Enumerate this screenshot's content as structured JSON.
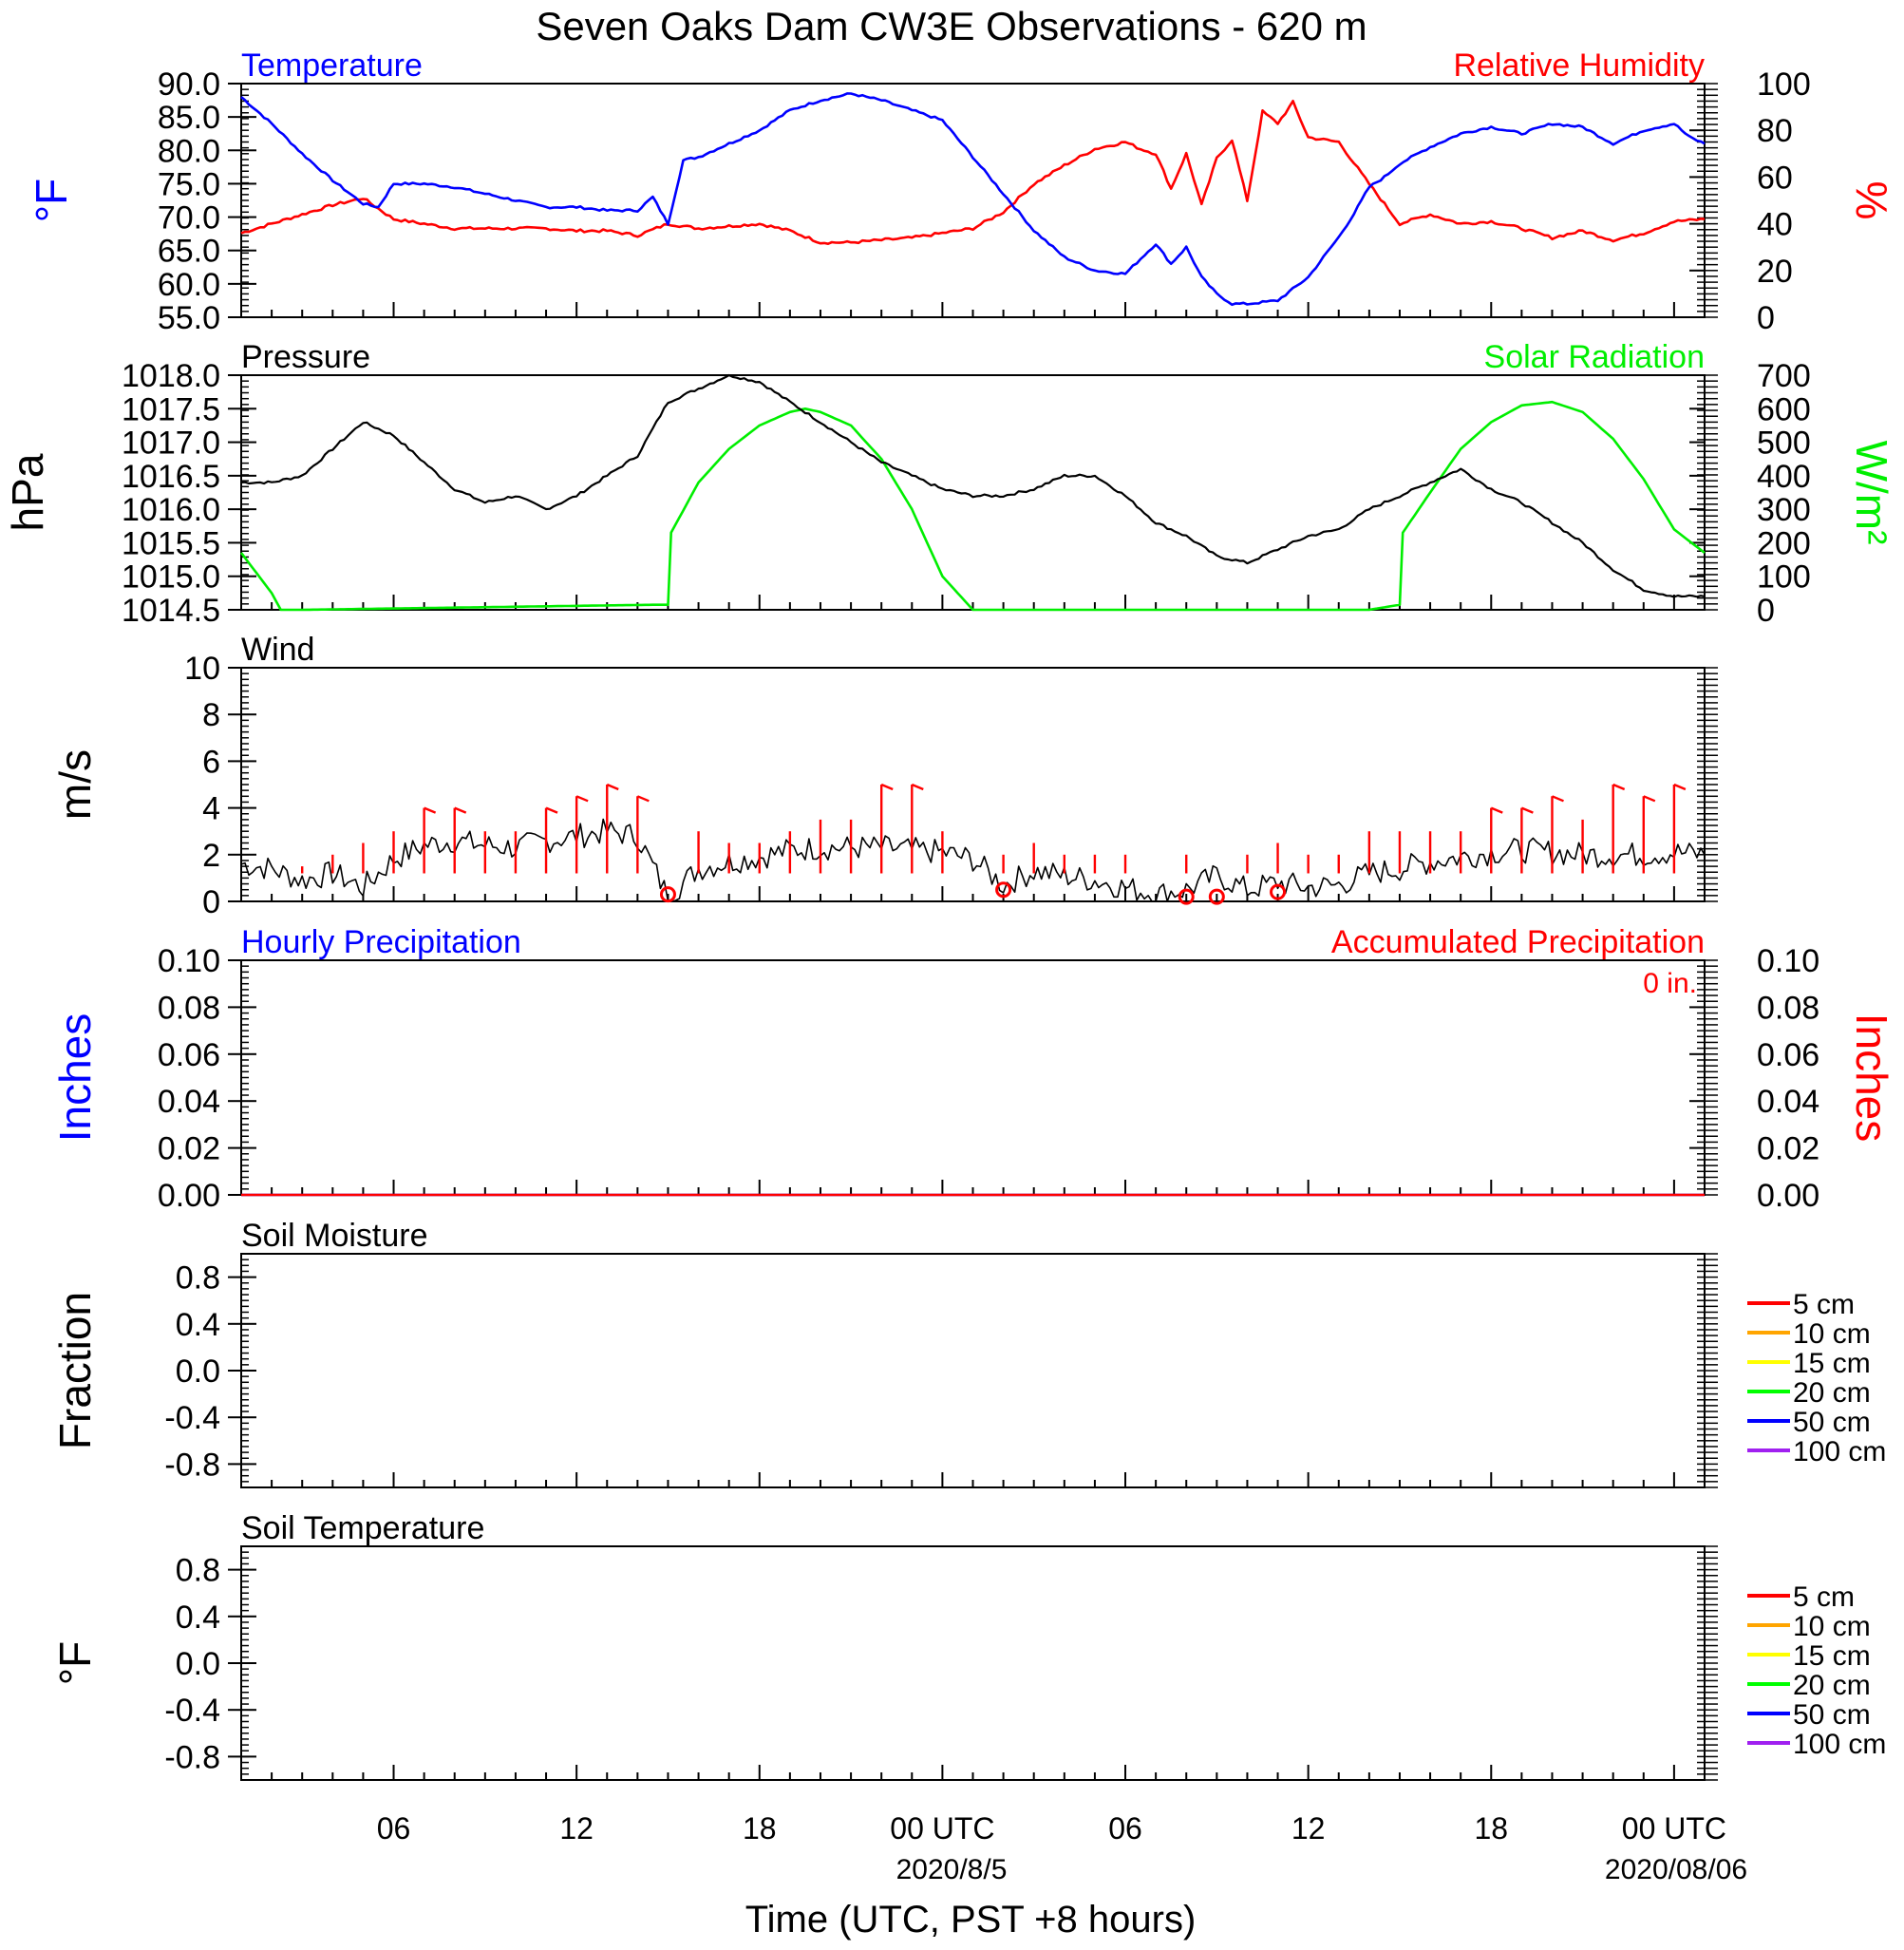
{
  "title": "Seven Oaks Dam CW3E Observations - 620 m",
  "x_axis": {
    "label": "Time (UTC, PST +8 hours)",
    "ticks": [
      "06",
      "12",
      "18",
      "00 UTC",
      "06",
      "12",
      "18",
      "00 UTC"
    ],
    "dates": [
      "2020/8/5",
      "2020/08/06"
    ]
  },
  "colors": {
    "temperature": "#0000ff",
    "humidity": "#ff0000",
    "pressure": "#000000",
    "solar": "#00ee00",
    "wind": "#000000",
    "barbs": "#ff0000",
    "precip_hourly": "#0000ff",
    "precip_accum": "#ff0000"
  },
  "legend_levels": {
    "labels": [
      "5 cm",
      "10 cm",
      "15 cm",
      "20 cm",
      "50 cm",
      "100 cm"
    ],
    "colors": [
      "#ff0000",
      "#ffa500",
      "#ffff00",
      "#00ff00",
      "#0000ff",
      "#a020f0"
    ]
  },
  "panels": {
    "temp_rh": {
      "left_title": "Temperature",
      "right_title": "Relative Humidity",
      "left_unit": "°F",
      "right_unit": "%",
      "left_ticks": [
        "90.0",
        "85.0",
        "80.0",
        "75.0",
        "70.0",
        "65.0",
        "60.0",
        "55.0"
      ],
      "right_ticks": [
        "100",
        "80",
        "60",
        "40",
        "20",
        "0"
      ]
    },
    "pressure_solar": {
      "left_title": "Pressure",
      "right_title": "Solar Radiation",
      "left_unit": "hPa",
      "right_unit": "W/m²",
      "left_ticks": [
        "1018.0",
        "1017.5",
        "1017.0",
        "1016.5",
        "1016.0",
        "1015.5",
        "1015.0",
        "1014.5"
      ],
      "right_ticks": [
        "700",
        "600",
        "500",
        "400",
        "300",
        "200",
        "100",
        "0"
      ]
    },
    "wind": {
      "left_title": "Wind",
      "left_unit": "m/s",
      "left_ticks": [
        "10",
        "8",
        "6",
        "4",
        "2",
        "0"
      ]
    },
    "precip": {
      "left_title": "Hourly Precipitation",
      "right_title": "Accumulated Precipitation",
      "left_unit": "Inches",
      "right_unit": "Inches",
      "left_ticks": [
        "0.10",
        "0.08",
        "0.06",
        "0.04",
        "0.02",
        "0.00"
      ],
      "right_ticks": [
        "0.10",
        "0.08",
        "0.06",
        "0.04",
        "0.02",
        "0.00"
      ],
      "total_label": "0 in."
    },
    "soil_moisture": {
      "left_title": "Soil Moisture",
      "left_unit": "Fraction",
      "left_ticks": [
        "0.8",
        "0.4",
        "0.0",
        "-0.4",
        "-0.8"
      ]
    },
    "soil_temp": {
      "left_title": "Soil Temperature",
      "left_unit": "°F",
      "left_ticks": [
        "0.8",
        "0.4",
        "0.0",
        "-0.4",
        "-0.8"
      ]
    }
  },
  "chart_data": {
    "type": "line",
    "x_unit": "hours since 2020-08-04 00 UTC",
    "x_range": [
      1,
      49
    ],
    "series": [
      {
        "name": "Temperature",
        "axis": "temp_rh-left",
        "ylim": [
          55,
          90
        ],
        "x": [
          1,
          2,
          3,
          4,
          5,
          5.5,
          6,
          7,
          8,
          9,
          10,
          11,
          12,
          13,
          14,
          14.5,
          15,
          15.5,
          16,
          17,
          18,
          19,
          20,
          21,
          22,
          23,
          24,
          25,
          26,
          27,
          28,
          29,
          30,
          31,
          31.5,
          32,
          32.5,
          33,
          33.5,
          34,
          35,
          36,
          37,
          37.5,
          38,
          38.5,
          39,
          40,
          41,
          42,
          43,
          44,
          45,
          46,
          47,
          48,
          48.5,
          49
        ],
        "y": [
          88,
          84,
          79.5,
          75.5,
          72,
          71.5,
          75,
          75,
          74.5,
          73.5,
          72.5,
          71.5,
          71.5,
          71,
          71,
          73,
          69,
          78.5,
          79,
          81,
          83,
          86,
          87.5,
          88.5,
          87.5,
          86,
          84.5,
          79,
          73.5,
          68,
          64,
          62,
          61.5,
          66,
          63,
          65.5,
          61,
          58.5,
          57,
          57,
          57.5,
          61,
          67,
          70.5,
          74.5,
          76,
          78,
          80.5,
          82.5,
          83.5,
          82.5,
          84,
          83.5,
          81,
          83,
          84,
          82,
          81
        ]
      },
      {
        "name": "Relative Humidity",
        "axis": "temp_rh-right",
        "ylim": [
          0,
          100
        ],
        "x": [
          1,
          2,
          3,
          4,
          5,
          6,
          7,
          8,
          9,
          10,
          11,
          12,
          13,
          14,
          15,
          16,
          17,
          18,
          19,
          20,
          21,
          22,
          23,
          24,
          25,
          26,
          27,
          28,
          29,
          30,
          30.5,
          31,
          31.5,
          32,
          32.5,
          33,
          33.5,
          34,
          34.5,
          35,
          35.5,
          36,
          37,
          38,
          39,
          40,
          41,
          42,
          43,
          44,
          45,
          46,
          47,
          48,
          49
        ],
        "y": [
          36,
          40,
          44,
          48,
          51,
          42,
          40,
          38,
          38,
          38,
          38,
          37,
          37,
          35,
          40,
          38,
          39,
          40,
          37,
          32,
          32,
          33,
          34,
          36,
          38,
          45,
          57,
          65,
          72,
          75,
          72,
          70,
          55,
          70,
          48,
          68,
          76,
          50,
          88,
          83,
          92,
          77,
          75,
          57,
          40,
          44,
          40,
          41,
          38,
          34,
          37,
          33,
          36,
          41,
          42
        ]
      },
      {
        "name": "Pressure",
        "axis": "pressure_solar-left",
        "ylim": [
          1014.5,
          1018
        ],
        "x": [
          1,
          2,
          3,
          4,
          5,
          6,
          7,
          8,
          9,
          10,
          11,
          12,
          13,
          14,
          15,
          16,
          17,
          18,
          19,
          20,
          21,
          22,
          23,
          24,
          25,
          26,
          27,
          28,
          29,
          30,
          31,
          32,
          33,
          34,
          35,
          36,
          37,
          38,
          39,
          40,
          41,
          42,
          43,
          44,
          45,
          46,
          47,
          48,
          49
        ],
        "y": [
          1016.4,
          1016.4,
          1016.5,
          1016.9,
          1017.3,
          1017.1,
          1016.7,
          1016.3,
          1016.1,
          1016.2,
          1016,
          1016.2,
          1016.5,
          1016.8,
          1017.6,
          1017.8,
          1018,
          1017.9,
          1017.6,
          1017.3,
          1017,
          1016.7,
          1016.5,
          1016.3,
          1016.2,
          1016.2,
          1016.3,
          1016.5,
          1016.5,
          1016.2,
          1015.8,
          1015.6,
          1015.3,
          1015.2,
          1015.4,
          1015.6,
          1015.7,
          1016.0,
          1016.2,
          1016.4,
          1016.6,
          1016.3,
          1016.1,
          1015.8,
          1015.5,
          1015.1,
          1014.8,
          1014.7,
          1014.7
        ]
      },
      {
        "name": "Solar Radiation",
        "axis": "pressure_solar-right",
        "ylim": [
          0,
          700
        ],
        "x": [
          1,
          2,
          2.3,
          3,
          14.5,
          15,
          15.1,
          16,
          17,
          18,
          19,
          19.5,
          20,
          21,
          22,
          23,
          24,
          25,
          26,
          27,
          38,
          39,
          39.1,
          40,
          41,
          42,
          43,
          44,
          45,
          46,
          47,
          48,
          49
        ],
        "y": [
          170,
          50,
          0,
          0,
          15,
          15,
          230,
          380,
          480,
          550,
          590,
          600,
          590,
          550,
          450,
          300,
          100,
          0,
          0,
          0,
          0,
          15,
          230,
          350,
          480,
          560,
          610,
          620,
          590,
          510,
          390,
          240,
          170
        ]
      },
      {
        "name": "Wind Speed",
        "axis": "wind-left",
        "ylim": [
          0,
          10
        ],
        "x": [
          1,
          2,
          3,
          4,
          5,
          6,
          7,
          8,
          9,
          10,
          11,
          12,
          13,
          14,
          15,
          16,
          17,
          18,
          19,
          20,
          21,
          22,
          23,
          24,
          25,
          26,
          27,
          28,
          29,
          30,
          31,
          32,
          33,
          34,
          35,
          36,
          37,
          38,
          39,
          40,
          41,
          42,
          43,
          44,
          45,
          46,
          47,
          48,
          49
        ],
        "y": [
          1.6,
          1.4,
          0.9,
          1.2,
          0.6,
          1.8,
          2.4,
          2.6,
          2.4,
          2.3,
          2.6,
          2.8,
          3.0,
          2.8,
          0.2,
          1.4,
          1.7,
          1.9,
          2.2,
          2.3,
          2.3,
          2.3,
          2.2,
          2.1,
          1.8,
          0.7,
          1.3,
          1.1,
          0.9,
          0.6,
          0.3,
          0.5,
          1.1,
          0.5,
          0.8,
          0.6,
          0.7,
          1.2,
          1.4,
          1.7,
          1.9,
          2.1,
          2.2,
          2.1,
          2.0,
          2.0,
          2.0,
          2.1,
          2.0
        ]
      },
      {
        "name": "Wind Barb Speed",
        "axis": "wind-barbs",
        "x": [
          3,
          4,
          5,
          6,
          7,
          8,
          9,
          10,
          11,
          12,
          13,
          14,
          16,
          17,
          18,
          19,
          20,
          21,
          22,
          23,
          24,
          26,
          27,
          28,
          29,
          30,
          32,
          34,
          35,
          36,
          37,
          38,
          39,
          40,
          41,
          42,
          43,
          44,
          45,
          46,
          47,
          48
        ],
        "y": [
          1.5,
          2,
          2.5,
          3,
          4,
          4,
          3,
          3,
          4,
          4.5,
          5,
          4.5,
          3,
          2.5,
          2.5,
          3,
          3.5,
          3.5,
          5,
          5,
          3,
          2,
          2.5,
          2,
          2,
          2,
          2,
          2,
          2.5,
          2,
          2,
          3,
          3,
          3,
          3,
          4,
          4,
          4.5,
          3.5,
          5,
          4.5,
          5
        ]
      },
      {
        "name": "Calm",
        "axis": "wind-calm",
        "x": [
          15,
          26,
          32,
          33,
          35
        ],
        "y": [
          0.3,
          0.5,
          0.2,
          0.2,
          0.4
        ]
      },
      {
        "name": "Hourly Precipitation",
        "axis": "precip-left",
        "ylim": [
          0,
          0.1
        ],
        "x": [
          1,
          49
        ],
        "y": [
          0,
          0
        ]
      },
      {
        "name": "Accumulated Precipitation",
        "axis": "precip-right",
        "ylim": [
          0,
          0.1
        ],
        "x": [
          1,
          49
        ],
        "y": [
          0,
          0
        ]
      }
    ]
  }
}
